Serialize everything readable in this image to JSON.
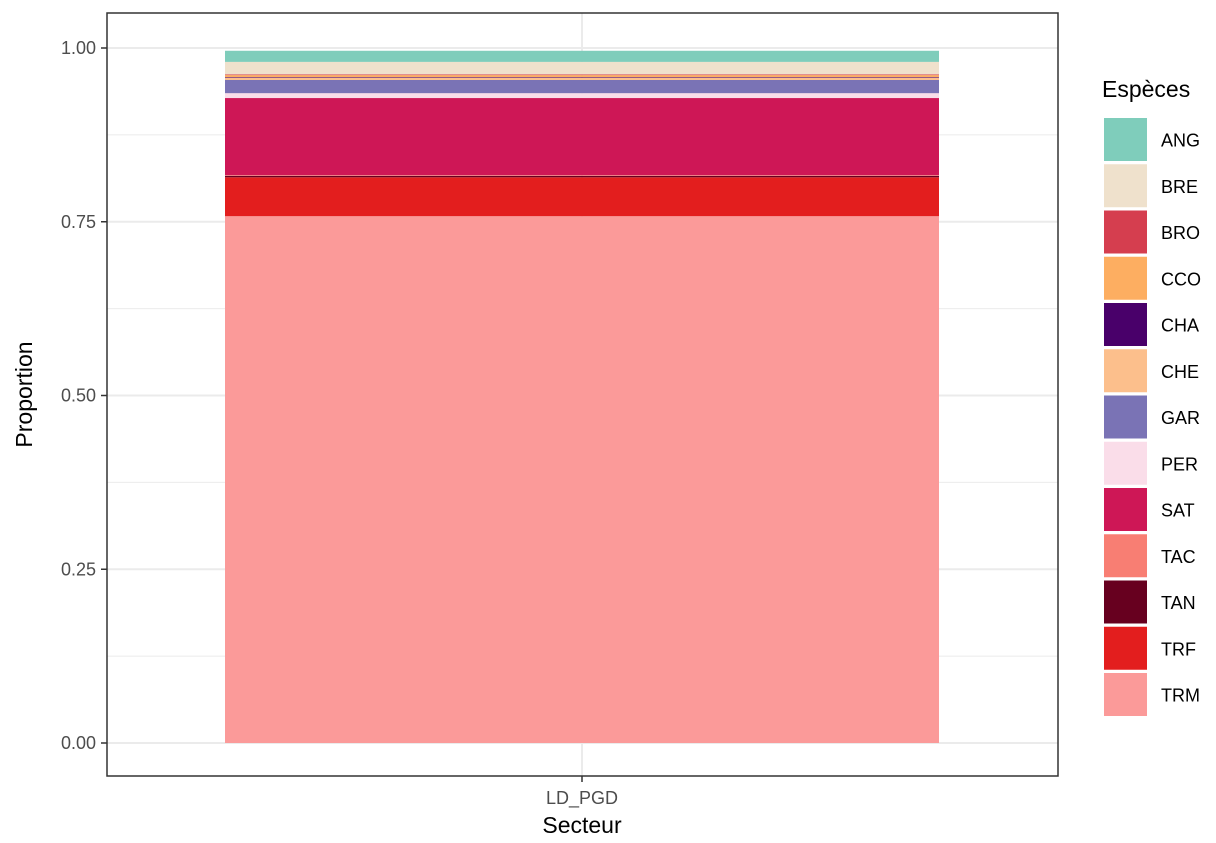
{
  "chart_data": {
    "type": "bar",
    "stacked": true,
    "normalized": true,
    "categories": [
      "LD_PGD"
    ],
    "xlabel": "Secteur",
    "ylabel": "Proportion",
    "ylim": [
      0,
      1
    ],
    "yticks": [
      "0.00",
      "0.25",
      "0.50",
      "0.75",
      "1.00"
    ],
    "ytick_values": [
      0,
      0.25,
      0.5,
      0.75,
      1.0
    ],
    "grid": true,
    "legend": {
      "title": "Espèces",
      "placement": "right"
    },
    "series": [
      {
        "name": "ANG",
        "color": "#7fcdbb",
        "values": [
          0.016
        ]
      },
      {
        "name": "BRE",
        "color": "#efe1cc",
        "values": [
          0.018
        ]
      },
      {
        "name": "BRO",
        "color": "#d53e4f",
        "values": [
          0.001
        ]
      },
      {
        "name": "CCO",
        "color": "#fdae61",
        "values": [
          0.003
        ]
      },
      {
        "name": "CHA",
        "color": "#49006a",
        "values": [
          0.001
        ]
      },
      {
        "name": "CHE",
        "color": "#fcbf8c",
        "values": [
          0.003
        ]
      },
      {
        "name": "GAR",
        "color": "#7a73b5",
        "values": [
          0.019
        ]
      },
      {
        "name": "PER",
        "color": "#fadde9",
        "values": [
          0.007
        ]
      },
      {
        "name": "SAT",
        "color": "#ce1756",
        "values": [
          0.111
        ]
      },
      {
        "name": "TAC",
        "color": "#f87e73",
        "values": [
          0.001
        ]
      },
      {
        "name": "TAN",
        "color": "#67001f",
        "values": [
          0.002
        ]
      },
      {
        "name": "TRF",
        "color": "#e31e1e",
        "values": [
          0.056
        ]
      },
      {
        "name": "TRM",
        "color": "#fb9a99",
        "values": [
          0.758
        ]
      }
    ]
  }
}
